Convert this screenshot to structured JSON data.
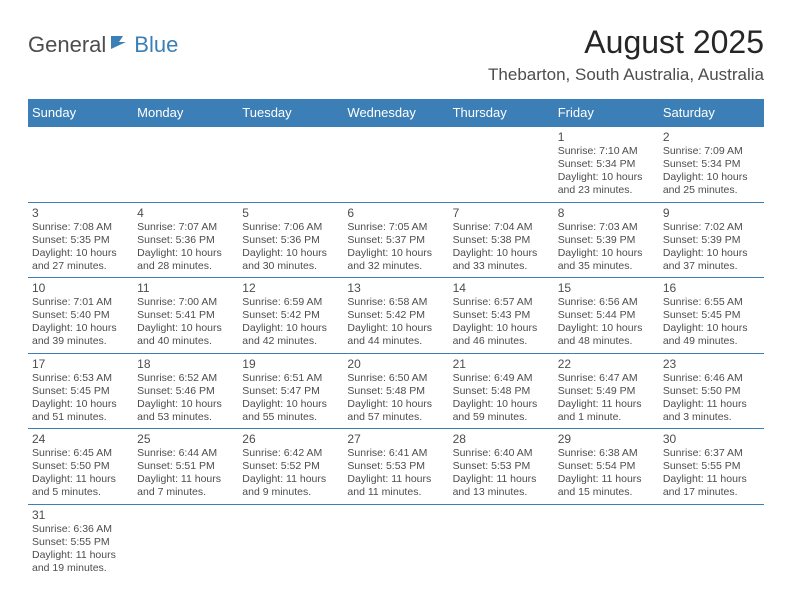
{
  "logo": {
    "part1": "General",
    "part2": "Blue"
  },
  "title": "August 2025",
  "location": "Thebarton, South Australia, Australia",
  "dow": [
    "Sunday",
    "Monday",
    "Tuesday",
    "Wednesday",
    "Thursday",
    "Friday",
    "Saturday"
  ],
  "colors": {
    "header_bg": "#3b7fb6",
    "header_text": "#ffffff",
    "text": "#4d4d4d",
    "title": "#262626",
    "border": "#3b7fb6",
    "background": "#ffffff"
  },
  "weeks": [
    [
      null,
      null,
      null,
      null,
      null,
      {
        "n": "1",
        "sr": "Sunrise: 7:10 AM",
        "ss": "Sunset: 5:34 PM",
        "d1": "Daylight: 10 hours",
        "d2": "and 23 minutes."
      },
      {
        "n": "2",
        "sr": "Sunrise: 7:09 AM",
        "ss": "Sunset: 5:34 PM",
        "d1": "Daylight: 10 hours",
        "d2": "and 25 minutes."
      }
    ],
    [
      {
        "n": "3",
        "sr": "Sunrise: 7:08 AM",
        "ss": "Sunset: 5:35 PM",
        "d1": "Daylight: 10 hours",
        "d2": "and 27 minutes."
      },
      {
        "n": "4",
        "sr": "Sunrise: 7:07 AM",
        "ss": "Sunset: 5:36 PM",
        "d1": "Daylight: 10 hours",
        "d2": "and 28 minutes."
      },
      {
        "n": "5",
        "sr": "Sunrise: 7:06 AM",
        "ss": "Sunset: 5:36 PM",
        "d1": "Daylight: 10 hours",
        "d2": "and 30 minutes."
      },
      {
        "n": "6",
        "sr": "Sunrise: 7:05 AM",
        "ss": "Sunset: 5:37 PM",
        "d1": "Daylight: 10 hours",
        "d2": "and 32 minutes."
      },
      {
        "n": "7",
        "sr": "Sunrise: 7:04 AM",
        "ss": "Sunset: 5:38 PM",
        "d1": "Daylight: 10 hours",
        "d2": "and 33 minutes."
      },
      {
        "n": "8",
        "sr": "Sunrise: 7:03 AM",
        "ss": "Sunset: 5:39 PM",
        "d1": "Daylight: 10 hours",
        "d2": "and 35 minutes."
      },
      {
        "n": "9",
        "sr": "Sunrise: 7:02 AM",
        "ss": "Sunset: 5:39 PM",
        "d1": "Daylight: 10 hours",
        "d2": "and 37 minutes."
      }
    ],
    [
      {
        "n": "10",
        "sr": "Sunrise: 7:01 AM",
        "ss": "Sunset: 5:40 PM",
        "d1": "Daylight: 10 hours",
        "d2": "and 39 minutes."
      },
      {
        "n": "11",
        "sr": "Sunrise: 7:00 AM",
        "ss": "Sunset: 5:41 PM",
        "d1": "Daylight: 10 hours",
        "d2": "and 40 minutes."
      },
      {
        "n": "12",
        "sr": "Sunrise: 6:59 AM",
        "ss": "Sunset: 5:42 PM",
        "d1": "Daylight: 10 hours",
        "d2": "and 42 minutes."
      },
      {
        "n": "13",
        "sr": "Sunrise: 6:58 AM",
        "ss": "Sunset: 5:42 PM",
        "d1": "Daylight: 10 hours",
        "d2": "and 44 minutes."
      },
      {
        "n": "14",
        "sr": "Sunrise: 6:57 AM",
        "ss": "Sunset: 5:43 PM",
        "d1": "Daylight: 10 hours",
        "d2": "and 46 minutes."
      },
      {
        "n": "15",
        "sr": "Sunrise: 6:56 AM",
        "ss": "Sunset: 5:44 PM",
        "d1": "Daylight: 10 hours",
        "d2": "and 48 minutes."
      },
      {
        "n": "16",
        "sr": "Sunrise: 6:55 AM",
        "ss": "Sunset: 5:45 PM",
        "d1": "Daylight: 10 hours",
        "d2": "and 49 minutes."
      }
    ],
    [
      {
        "n": "17",
        "sr": "Sunrise: 6:53 AM",
        "ss": "Sunset: 5:45 PM",
        "d1": "Daylight: 10 hours",
        "d2": "and 51 minutes."
      },
      {
        "n": "18",
        "sr": "Sunrise: 6:52 AM",
        "ss": "Sunset: 5:46 PM",
        "d1": "Daylight: 10 hours",
        "d2": "and 53 minutes."
      },
      {
        "n": "19",
        "sr": "Sunrise: 6:51 AM",
        "ss": "Sunset: 5:47 PM",
        "d1": "Daylight: 10 hours",
        "d2": "and 55 minutes."
      },
      {
        "n": "20",
        "sr": "Sunrise: 6:50 AM",
        "ss": "Sunset: 5:48 PM",
        "d1": "Daylight: 10 hours",
        "d2": "and 57 minutes."
      },
      {
        "n": "21",
        "sr": "Sunrise: 6:49 AM",
        "ss": "Sunset: 5:48 PM",
        "d1": "Daylight: 10 hours",
        "d2": "and 59 minutes."
      },
      {
        "n": "22",
        "sr": "Sunrise: 6:47 AM",
        "ss": "Sunset: 5:49 PM",
        "d1": "Daylight: 11 hours",
        "d2": "and 1 minute."
      },
      {
        "n": "23",
        "sr": "Sunrise: 6:46 AM",
        "ss": "Sunset: 5:50 PM",
        "d1": "Daylight: 11 hours",
        "d2": "and 3 minutes."
      }
    ],
    [
      {
        "n": "24",
        "sr": "Sunrise: 6:45 AM",
        "ss": "Sunset: 5:50 PM",
        "d1": "Daylight: 11 hours",
        "d2": "and 5 minutes."
      },
      {
        "n": "25",
        "sr": "Sunrise: 6:44 AM",
        "ss": "Sunset: 5:51 PM",
        "d1": "Daylight: 11 hours",
        "d2": "and 7 minutes."
      },
      {
        "n": "26",
        "sr": "Sunrise: 6:42 AM",
        "ss": "Sunset: 5:52 PM",
        "d1": "Daylight: 11 hours",
        "d2": "and 9 minutes."
      },
      {
        "n": "27",
        "sr": "Sunrise: 6:41 AM",
        "ss": "Sunset: 5:53 PM",
        "d1": "Daylight: 11 hours",
        "d2": "and 11 minutes."
      },
      {
        "n": "28",
        "sr": "Sunrise: 6:40 AM",
        "ss": "Sunset: 5:53 PM",
        "d1": "Daylight: 11 hours",
        "d2": "and 13 minutes."
      },
      {
        "n": "29",
        "sr": "Sunrise: 6:38 AM",
        "ss": "Sunset: 5:54 PM",
        "d1": "Daylight: 11 hours",
        "d2": "and 15 minutes."
      },
      {
        "n": "30",
        "sr": "Sunrise: 6:37 AM",
        "ss": "Sunset: 5:55 PM",
        "d1": "Daylight: 11 hours",
        "d2": "and 17 minutes."
      }
    ],
    [
      {
        "n": "31",
        "sr": "Sunrise: 6:36 AM",
        "ss": "Sunset: 5:55 PM",
        "d1": "Daylight: 11 hours",
        "d2": "and 19 minutes."
      },
      null,
      null,
      null,
      null,
      null,
      null
    ]
  ]
}
